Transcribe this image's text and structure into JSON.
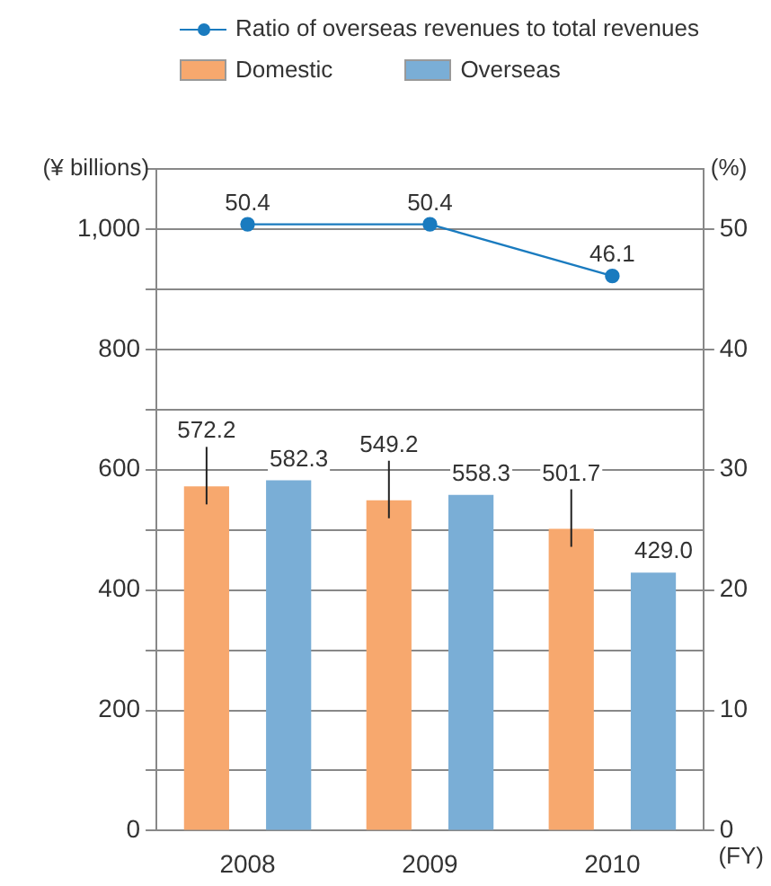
{
  "chart_data": {
    "type": "bar",
    "categories": [
      "2008",
      "2009",
      "2010"
    ],
    "series": [
      {
        "name": "Domestic",
        "color": "#f7a86e",
        "values": [
          572.2,
          549.2,
          501.7
        ],
        "value_labels": [
          "572.2",
          "549.2",
          "501.7"
        ]
      },
      {
        "name": "Overseas",
        "color": "#7aaed6",
        "values": [
          582.3,
          558.3,
          429.0
        ],
        "value_labels": [
          "582.3",
          "558.3",
          "429.0"
        ]
      },
      {
        "name": "Ratio of overseas revenues to total revenues",
        "type": "line",
        "axis": "y2",
        "color": "#1a7bbf",
        "values": [
          50.4,
          50.4,
          46.1
        ],
        "value_labels": [
          "50.4",
          "50.4",
          "46.1"
        ]
      }
    ],
    "ylabel": "(¥ billions)",
    "y2label": "(%)",
    "xlabel": "(FY)",
    "ylim": [
      0,
      1100
    ],
    "yticks": [
      0,
      {
        "value": 100,
        "label": null
      },
      {
        "value": 200,
        "label": "200"
      },
      {
        "value": 300,
        "label": null
      },
      {
        "value": 400,
        "label": "400"
      },
      {
        "value": 500,
        "label": null
      },
      {
        "value": 600,
        "label": "600"
      },
      {
        "value": 700,
        "label": null
      },
      {
        "value": 800,
        "label": "800"
      },
      {
        "value": 900,
        "label": null
      },
      {
        "value": 1000,
        "label": "1,000"
      },
      {
        "value": 1100,
        "label": null
      }
    ],
    "y2lim": [
      0,
      55
    ],
    "y2ticks": [
      0,
      10,
      20,
      30,
      40,
      50
    ],
    "grid": "y",
    "legend": "top right",
    "marker": "circle",
    "line_style": "solid"
  }
}
